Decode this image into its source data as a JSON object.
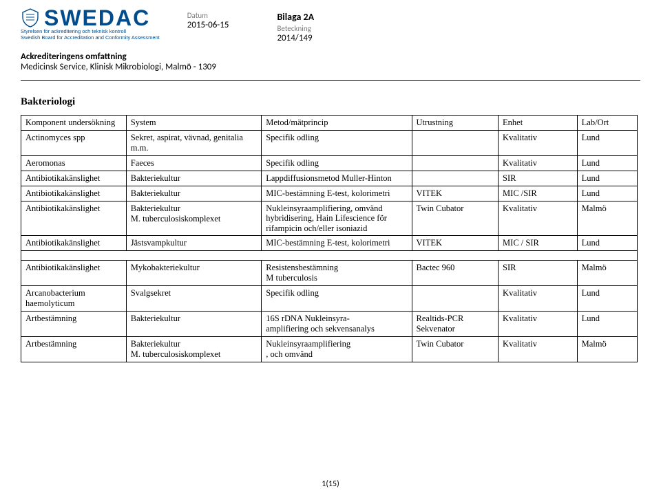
{
  "header": {
    "logo_text": "SWEDAC",
    "logo_sub1": "Styrelsen för ackreditering och teknisk kontroll",
    "logo_sub2": "Swedish Board for Accreditation and Conformity Assessment",
    "bilaga": "Bilaga 2A",
    "datum_label": "Datum",
    "datum_value": "2015-06-15",
    "beteckning_label": "Beteckning",
    "beteckning_value": "2014/149"
  },
  "accred": {
    "title": "Ackrediteringens omfattning",
    "line": "Medicinsk Service, Klinisk Mikrobiologi, Malmö - 1309"
  },
  "section_title": "Bakteriologi",
  "table1": {
    "headers": [
      "Komponent undersökning",
      "System",
      "Metod/mätprincip",
      "Utrustning",
      "Enhet",
      "Lab/Ort"
    ],
    "rows": [
      [
        "Actinomyces spp",
        "Sekret, aspirat, vävnad, genitalia m.m.",
        "Specifik odling",
        "",
        "Kvalitativ",
        "Lund"
      ],
      [
        "Aeromonas",
        "Faeces",
        "Specifik odling",
        "",
        "Kvalitativ",
        "Lund"
      ],
      [
        "Antibiotikakänslighet",
        "Bakteriekultur",
        "Lappdiffusionsmetod Muller-Hinton",
        "",
        "SIR",
        "Lund"
      ],
      [
        "Antibiotikakänslighet",
        "Bakteriekultur",
        "MIC-bestämning E-test, kolorimetri",
        "VITEK",
        "MIC /SIR",
        "Lund"
      ],
      [
        "Antibiotikakänslighet",
        "Bakteriekultur\nM. tuberculosiskomplexet",
        "Nukleinsyraamplifiering, omvänd hybridisering, Hain Lifescience för rifampicin och/eller isoniazid",
        "Twin Cubator",
        "Kvalitativ",
        "Malmö"
      ],
      [
        "Antibiotikakänslighet",
        "Jästsvampkultur",
        "MIC-bestämning E-test, kolorimetri",
        "VITEK",
        "MIC / SIR",
        "Lund"
      ]
    ]
  },
  "table2": {
    "rows": [
      [
        "Antibiotikakänslighet",
        "Mykobakteriekultur",
        "Resistensbestämning\nM tuberculosis",
        "Bactec 960",
        "SIR",
        "Malmö"
      ],
      [
        "Arcanobacterium haemolyticum",
        "Svalgsekret",
        "Specifik odling",
        "",
        "Kvalitativ",
        "Lund"
      ],
      [
        "Artbestämning",
        "Bakteriekultur",
        "16S rDNA Nukleinsyra-\namplifiering och sekvensanalys",
        "Realtids-PCR Sekvenator",
        "Kvalitativ",
        "Lund"
      ],
      [
        "Artbestämning",
        "Bakteriekultur\nM. tuberculosiskomplexet",
        "Nukleinsyraamplifiering\n, och omvänd",
        "Twin Cubator",
        "Kvalitativ",
        "Malmö"
      ]
    ]
  },
  "page_num": "1(15)",
  "colors": {
    "logo_blue": "#004c8c"
  }
}
